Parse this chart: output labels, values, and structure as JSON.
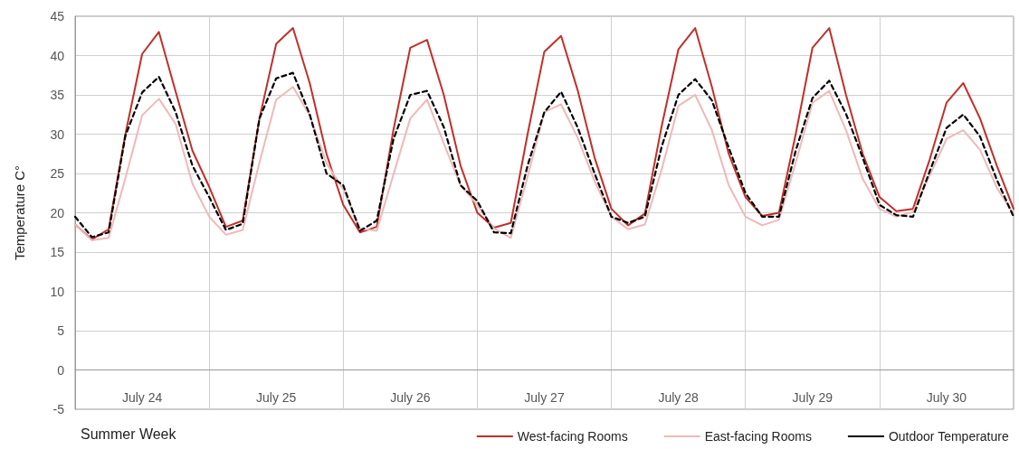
{
  "chart_data": {
    "type": "line",
    "xlabel": "Summer Week",
    "ylabel": "Temperature C°",
    "categories": [
      null,
      null,
      null,
      null,
      "July 24",
      null,
      null,
      null,
      null,
      null,
      null,
      null,
      "July 25",
      null,
      null,
      null,
      null,
      null,
      null,
      null,
      "July 26",
      null,
      null,
      null,
      null,
      null,
      null,
      null,
      "July 27",
      null,
      null,
      null,
      null,
      null,
      null,
      null,
      "July 28",
      null,
      null,
      null,
      null,
      null,
      null,
      null,
      "July 29",
      null,
      null,
      null,
      null,
      null,
      null,
      null,
      "July 30",
      null,
      null,
      null,
      null
    ],
    "series": [
      {
        "name": "West-facing Rooms",
        "color": "#c0302a",
        "line_style": "solid",
        "values": [
          18.5,
          16.6,
          17.9,
          30,
          40.2,
          43,
          35.4,
          27.9,
          23.3,
          18.2,
          19,
          32,
          41.5,
          43.5,
          36.5,
          27.5,
          21,
          17.5,
          18.2,
          30.6,
          41,
          42,
          35,
          26,
          20,
          18.1,
          18.7,
          30,
          40.5,
          42.5,
          35.5,
          27,
          20.5,
          18.4,
          19.9,
          31,
          40.8,
          43.5,
          36,
          27.5,
          22,
          19.6,
          20,
          30,
          41,
          43.5,
          35,
          27.5,
          22,
          20.2,
          20.5,
          26.8,
          34,
          36.5,
          32,
          26,
          20.5
        ]
      },
      {
        "name": "East-facing Rooms",
        "color": "#f0b8b8",
        "line_style": "solid",
        "values": [
          18.5,
          16.5,
          16.8,
          24.4,
          32.4,
          34.5,
          31.3,
          23.7,
          19.5,
          17.2,
          17.8,
          26.4,
          34.4,
          36,
          32.4,
          26.3,
          23,
          18,
          17.7,
          24.9,
          32,
          34.4,
          28.8,
          23.5,
          21,
          18,
          16.8,
          24.6,
          32.8,
          33.8,
          29.5,
          24,
          19.5,
          17.9,
          18.5,
          25.5,
          33.6,
          35,
          30.5,
          23.5,
          19.5,
          18.4,
          19.1,
          26.4,
          34,
          35.5,
          30.5,
          24.3,
          20.5,
          19.5,
          20.1,
          24.8,
          29.4,
          30.5,
          28,
          23.2,
          19.8
        ]
      },
      {
        "name": "Outdoor Temperature",
        "color": "#000000",
        "line_style": "dashed",
        "values": [
          19.5,
          16.9,
          17.5,
          29.8,
          35.3,
          37.3,
          32.8,
          26,
          22,
          17.8,
          18.6,
          32,
          37.1,
          37.8,
          32.5,
          25,
          23.5,
          17.7,
          19,
          29.4,
          35,
          35.5,
          30.9,
          23.5,
          21.5,
          17.5,
          17.4,
          26,
          32.8,
          35.4,
          30.8,
          25,
          19.5,
          18.7,
          19.5,
          28.4,
          35,
          37,
          34.3,
          28.3,
          22.5,
          19.5,
          19.5,
          27.9,
          34.6,
          36.8,
          32.6,
          27,
          21,
          19.7,
          19.5,
          25.3,
          30.8,
          32.5,
          29.7,
          24.2,
          19.5
        ]
      }
    ],
    "ylim": [
      -5,
      45
    ],
    "yticks": [
      -5,
      0,
      5,
      10,
      15,
      20,
      25,
      30,
      35,
      40,
      45
    ],
    "grid": true,
    "legend": "bottom right",
    "marker": "none"
  }
}
